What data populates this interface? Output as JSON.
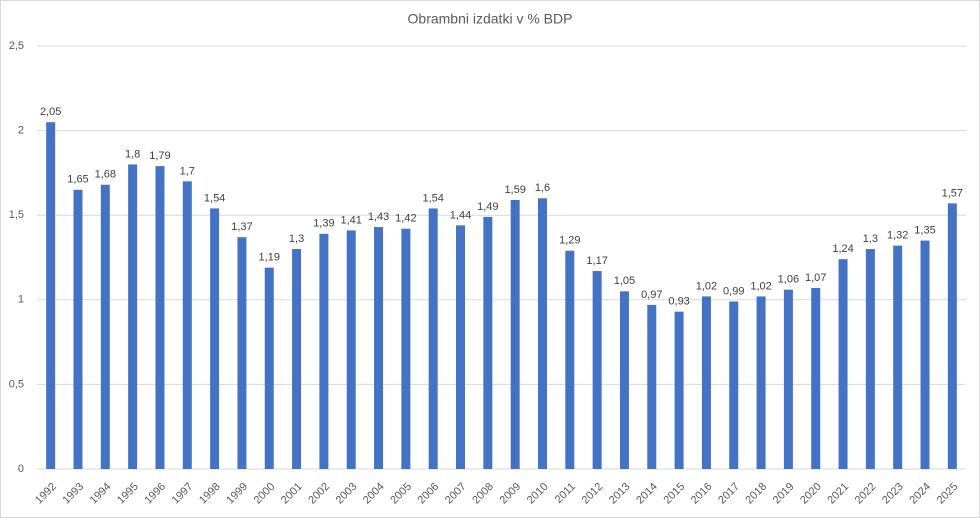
{
  "chart_data": {
    "type": "bar",
    "title": "Obrambni izdatki v % BDP",
    "categories": [
      "1992",
      "1993",
      "1994",
      "1995",
      "1996",
      "1997",
      "1998",
      "1999",
      "2000",
      "2001",
      "2002",
      "2003",
      "2004",
      "2005",
      "2006",
      "2007",
      "2008",
      "2009",
      "2010",
      "2011",
      "2012",
      "2013",
      "2014",
      "2015",
      "2016",
      "2017",
      "2018",
      "2019",
      "2020",
      "2021",
      "2022",
      "2023",
      "2024",
      "2025"
    ],
    "values": [
      2.05,
      1.65,
      1.68,
      1.8,
      1.79,
      1.7,
      1.54,
      1.37,
      1.19,
      1.3,
      1.39,
      1.41,
      1.43,
      1.42,
      1.54,
      1.44,
      1.49,
      1.59,
      1.6,
      1.29,
      1.17,
      1.05,
      0.97,
      0.93,
      1.02,
      0.99,
      1.02,
      1.06,
      1.07,
      1.24,
      1.3,
      1.32,
      1.35,
      1.57
    ],
    "value_labels": [
      "2,05",
      "1,65",
      "1,68",
      "1,8",
      "1,79",
      "1,7",
      "1,54",
      "1,37",
      "1,19",
      "1,3",
      "1,39",
      "1,41",
      "1,43",
      "1,42",
      "1,54",
      "1,44",
      "1,49",
      "1,59",
      "1,6",
      "1,29",
      "1,17",
      "1,05",
      "0,97",
      "0,93",
      "1,02",
      "0,99",
      "1,02",
      "1,06",
      "1,07",
      "1,24",
      "1,3",
      "1,32",
      "1,35",
      "1,57"
    ],
    "color": "#4472c4",
    "ylim": [
      0,
      2.5
    ],
    "yticks": [
      0,
      {
        "value": 0.5,
        "label": "0,5"
      },
      1,
      {
        "value": 1.5,
        "label": "1,5"
      },
      2,
      {
        "value": 2.5,
        "label": "2,5"
      }
    ],
    "grid": true
  }
}
